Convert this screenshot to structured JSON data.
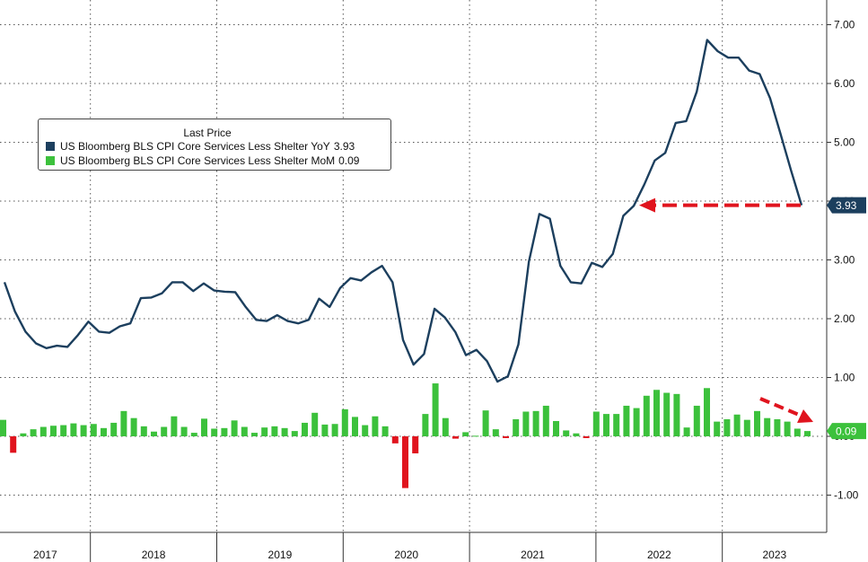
{
  "chart_data": {
    "type": "line",
    "title": "",
    "xlabel": "",
    "ylabel": "",
    "x_labels": [
      "2017",
      "2018",
      "2019",
      "2020",
      "2021",
      "2022",
      "2023"
    ],
    "ylim": [
      -1.5,
      7.3
    ],
    "y_ticks": [
      "7.00",
      "6.00",
      "5.00",
      "4.00",
      "3.00",
      "2.00",
      "1.00",
      "0.00",
      "-1.00"
    ],
    "y_tick_values": [
      7,
      6,
      5,
      4,
      3,
      2,
      1,
      0,
      -1
    ],
    "grid": true,
    "legend": {
      "title": "Last Price",
      "position": "top-left"
    },
    "series": [
      {
        "name": "US Bloomberg BLS CPI Core Services Less Shelter YoY",
        "last_value": "3.93",
        "color": "#1c3f5e",
        "style": "line",
        "values": [
          2.62,
          2.12,
          1.78,
          1.58,
          1.5,
          1.54,
          1.52,
          1.72,
          1.95,
          1.78,
          1.76,
          1.87,
          1.92,
          2.35,
          2.36,
          2.43,
          2.62,
          2.62,
          2.47,
          2.6,
          2.48,
          2.46,
          2.45,
          2.2,
          1.98,
          1.96,
          2.06,
          1.96,
          1.92,
          1.98,
          2.34,
          2.2,
          2.52,
          2.69,
          2.65,
          2.79,
          2.9,
          2.62,
          1.64,
          1.22,
          1.4,
          2.17,
          2.02,
          1.77,
          1.38,
          1.47,
          1.28,
          0.93,
          1.02,
          1.56,
          2.97,
          3.78,
          3.7,
          2.9,
          2.62,
          2.6,
          2.95,
          2.88,
          3.1,
          3.75,
          3.92,
          4.28,
          4.69,
          4.82,
          5.33,
          5.36,
          5.86,
          6.74,
          6.55,
          6.44,
          6.44,
          6.22,
          6.16,
          5.75,
          5.14,
          4.52,
          3.93
        ]
      },
      {
        "name": "US Bloomberg BLS CPI Core Services Less Shelter MoM",
        "last_value": "0.09",
        "color": "#3cc13c",
        "negative_color": "#e0141e",
        "style": "bar",
        "values": [
          0.28,
          -0.28,
          0.05,
          0.12,
          0.16,
          0.18,
          0.19,
          0.22,
          0.19,
          0.21,
          0.14,
          0.23,
          0.43,
          0.31,
          0.17,
          0.08,
          0.16,
          0.34,
          0.16,
          0.06,
          0.3,
          0.13,
          0.14,
          0.27,
          0.16,
          0.06,
          0.15,
          0.17,
          0.14,
          0.09,
          0.23,
          0.4,
          0.2,
          0.21,
          0.46,
          0.33,
          0.19,
          0.34,
          0.17,
          -0.12,
          -0.88,
          -0.29,
          0.38,
          0.9,
          0.31,
          -0.04,
          0.07,
          0.01,
          0.44,
          0.12,
          -0.03,
          0.29,
          0.42,
          0.43,
          0.52,
          0.26,
          0.1,
          0.05,
          -0.03,
          0.42,
          0.38,
          0.38,
          0.52,
          0.48,
          0.69,
          0.79,
          0.74,
          0.72,
          0.15,
          0.52,
          0.82,
          0.25,
          0.29,
          0.37,
          0.28,
          0.43,
          0.31,
          0.29,
          0.25,
          0.13,
          0.09
        ]
      }
    ],
    "annotations": [
      {
        "type": "dashed-arrow",
        "color": "#e0141e",
        "direction": "left",
        "at_value": 3.93
      },
      {
        "type": "dashed-arrow",
        "color": "#e0141e",
        "direction": "down-right",
        "context": "MoM bars"
      }
    ]
  }
}
